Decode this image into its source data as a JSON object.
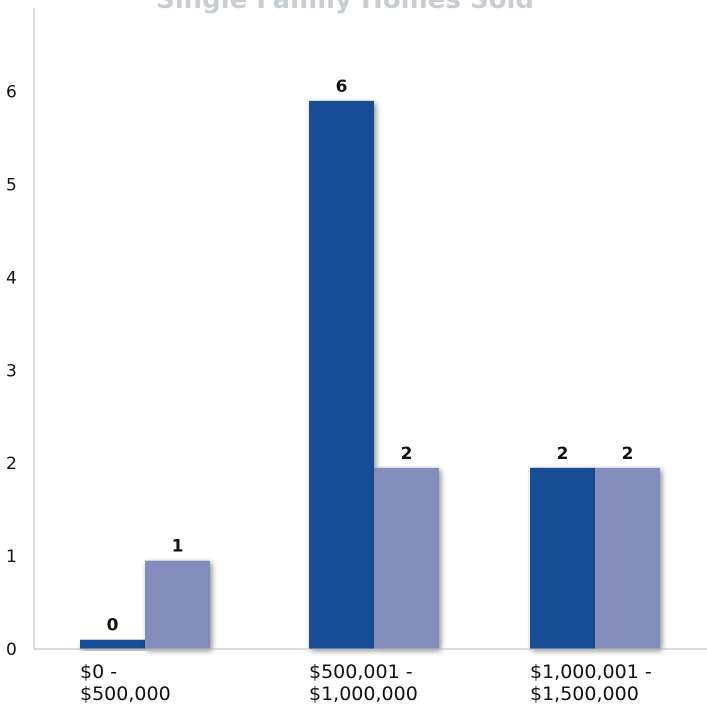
{
  "chart_data": {
    "type": "bar",
    "title": "Single Family Homes Sold",
    "categories": [
      [
        "$0 -",
        "$500,000"
      ],
      [
        "$500,001 -",
        "$1,000,000"
      ],
      [
        "$1,000,001 -",
        "$1,500,000"
      ]
    ],
    "series": [
      {
        "color": "#124e94",
        "values": [
          0,
          6,
          2
        ]
      },
      {
        "color": "#838dbb",
        "values": [
          1,
          2,
          2
        ]
      }
    ],
    "bar_display_values": [
      [
        0.1,
        5.9,
        1.95
      ],
      [
        0.95,
        1.95,
        1.95
      ]
    ],
    "ylim": [
      0,
      6.9
    ],
    "yticks": [
      0,
      1,
      2,
      3,
      4,
      5,
      6
    ],
    "grid": false,
    "legend": "none",
    "xlabel": "",
    "ylabel": ""
  }
}
